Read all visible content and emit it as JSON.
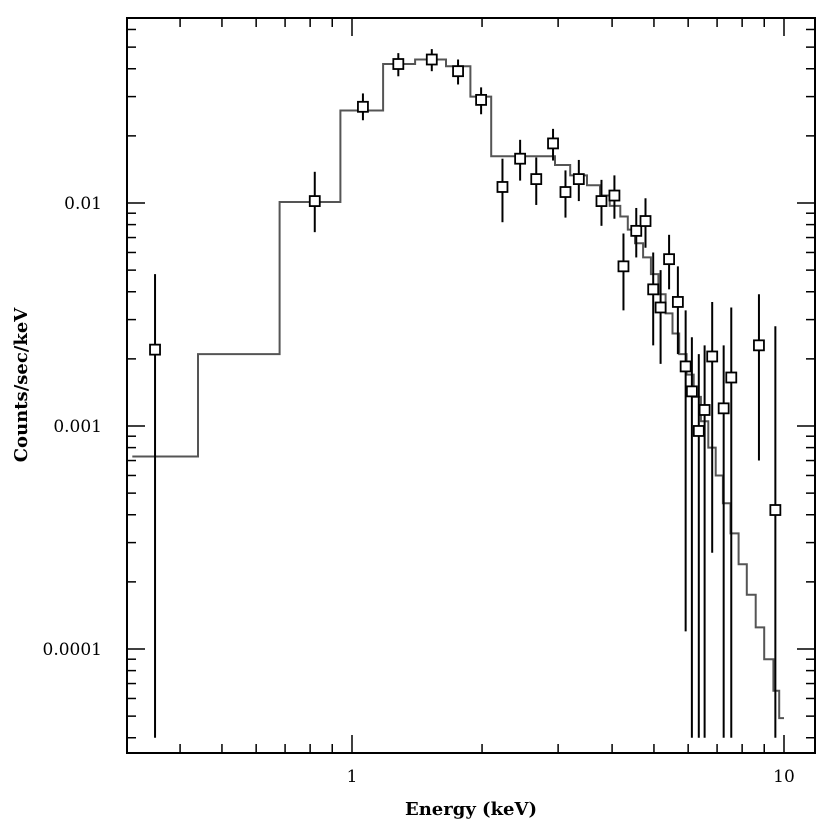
{
  "chart_data": {
    "type": "scatter",
    "title": "",
    "xlabel": "Energy (keV)",
    "ylabel": "Counts/sec/keV",
    "xscale": "log",
    "yscale": "log",
    "xlim": [
      0.31,
      11.5
    ],
    "ylim": [
      4e-05,
      0.1
    ],
    "grid": false,
    "x_tick_labels": [
      {
        "value": 1,
        "label": "1"
      },
      {
        "value": 10,
        "label": "10"
      }
    ],
    "y_tick_labels": [
      {
        "value": 0.0001,
        "label": "0.0001"
      },
      {
        "value": 0.001,
        "label": "0.001"
      },
      {
        "value": 0.01,
        "label": "0.01"
      }
    ],
    "series": [
      {
        "kind": "data",
        "marker": "open-square",
        "points": [
          {
            "x": 0.35,
            "y": 0.0022,
            "ylo": 4e-05,
            "yhi": 0.0048
          },
          {
            "x": 0.82,
            "y": 0.0102,
            "ylo": 0.0074,
            "yhi": 0.0138
          },
          {
            "x": 1.06,
            "y": 0.027,
            "ylo": 0.0235,
            "yhi": 0.031
          },
          {
            "x": 1.28,
            "y": 0.042,
            "ylo": 0.037,
            "yhi": 0.047
          },
          {
            "x": 1.53,
            "y": 0.044,
            "ylo": 0.039,
            "yhi": 0.049
          },
          {
            "x": 1.76,
            "y": 0.039,
            "ylo": 0.034,
            "yhi": 0.044
          },
          {
            "x": 1.99,
            "y": 0.029,
            "ylo": 0.025,
            "yhi": 0.033
          },
          {
            "x": 2.23,
            "y": 0.0118,
            "ylo": 0.0082,
            "yhi": 0.0158
          },
          {
            "x": 2.45,
            "y": 0.0158,
            "ylo": 0.0126,
            "yhi": 0.0192
          },
          {
            "x": 2.67,
            "y": 0.0128,
            "ylo": 0.0098,
            "yhi": 0.016
          },
          {
            "x": 2.92,
            "y": 0.0185,
            "ylo": 0.0155,
            "yhi": 0.0215
          },
          {
            "x": 3.12,
            "y": 0.0112,
            "ylo": 0.0086,
            "yhi": 0.014
          },
          {
            "x": 3.35,
            "y": 0.0128,
            "ylo": 0.0102,
            "yhi": 0.0156
          },
          {
            "x": 3.78,
            "y": 0.0102,
            "ylo": 0.0079,
            "yhi": 0.0127
          },
          {
            "x": 4.05,
            "y": 0.0108,
            "ylo": 0.0085,
            "yhi": 0.0133
          },
          {
            "x": 4.25,
            "y": 0.0052,
            "ylo": 0.0033,
            "yhi": 0.0073
          },
          {
            "x": 4.55,
            "y": 0.0075,
            "ylo": 0.0057,
            "yhi": 0.0095
          },
          {
            "x": 4.78,
            "y": 0.0083,
            "ylo": 0.0063,
            "yhi": 0.0105
          },
          {
            "x": 4.98,
            "y": 0.0041,
            "ylo": 0.0023,
            "yhi": 0.006
          },
          {
            "x": 5.18,
            "y": 0.0034,
            "ylo": 0.0019,
            "yhi": 0.005
          },
          {
            "x": 5.42,
            "y": 0.0056,
            "ylo": 0.0041,
            "yhi": 0.0072
          },
          {
            "x": 5.68,
            "y": 0.0036,
            "ylo": 0.0021,
            "yhi": 0.0052
          },
          {
            "x": 5.92,
            "y": 0.00185,
            "ylo": 0.00012,
            "yhi": 0.0033
          },
          {
            "x": 6.12,
            "y": 0.00143,
            "ylo": 4e-05,
            "yhi": 0.0025
          },
          {
            "x": 6.35,
            "y": 0.00095,
            "ylo": 4e-05,
            "yhi": 0.0021
          },
          {
            "x": 6.55,
            "y": 0.00118,
            "ylo": 4e-05,
            "yhi": 0.0023
          },
          {
            "x": 6.82,
            "y": 0.00205,
            "ylo": 0.00027,
            "yhi": 0.0036
          },
          {
            "x": 7.25,
            "y": 0.0012,
            "ylo": 4e-05,
            "yhi": 0.0023
          },
          {
            "x": 7.55,
            "y": 0.00165,
            "ylo": 4e-05,
            "yhi": 0.0034
          },
          {
            "x": 8.75,
            "y": 0.0023,
            "ylo": 0.0007,
            "yhi": 0.0039
          },
          {
            "x": 9.55,
            "y": 0.00042,
            "ylo": 4e-05,
            "yhi": 0.0028
          }
        ]
      },
      {
        "kind": "model",
        "step_x": [
          0.31,
          0.44,
          0.44,
          0.68,
          0.68,
          0.94,
          0.94,
          1.18,
          1.18,
          1.4,
          1.4,
          1.65,
          1.65,
          1.88,
          1.88,
          2.1,
          2.1,
          2.95,
          2.95,
          3.2,
          3.2,
          3.5,
          3.5,
          3.75,
          3.75,
          3.95,
          3.95,
          4.18,
          4.18,
          4.35,
          4.35,
          4.52,
          4.52,
          4.72,
          4.72,
          4.92,
          4.92,
          5.12,
          5.12,
          5.32,
          5.32,
          5.52,
          5.52,
          5.72,
          5.72,
          5.95,
          5.95,
          6.18,
          6.18,
          6.42,
          6.42,
          6.68,
          6.68,
          6.95,
          6.95,
          7.22,
          7.22,
          7.52,
          7.52,
          7.85,
          7.85,
          8.2,
          8.2,
          8.6,
          8.6,
          9.0,
          9.0,
          9.45,
          9.45,
          9.75,
          9.75,
          10.0
        ],
        "step_y": [
          0.00073,
          0.00073,
          0.0021,
          0.0021,
          0.0101,
          0.0101,
          0.026,
          0.026,
          0.042,
          0.042,
          0.044,
          0.044,
          0.041,
          0.041,
          0.03,
          0.03,
          0.0162,
          0.0162,
          0.0148,
          0.0148,
          0.0133,
          0.0133,
          0.012,
          0.012,
          0.0108,
          0.0108,
          0.0097,
          0.0097,
          0.0087,
          0.0087,
          0.0076,
          0.0076,
          0.0066,
          0.0066,
          0.0057,
          0.0057,
          0.0048,
          0.0048,
          0.0039,
          0.0039,
          0.0032,
          0.0032,
          0.0026,
          0.0026,
          0.0021,
          0.0021,
          0.0017,
          0.0017,
          0.00135,
          0.00135,
          0.00105,
          0.00105,
          0.0008,
          0.0008,
          0.0006,
          0.0006,
          0.00045,
          0.00045,
          0.00033,
          0.00033,
          0.00024,
          0.00024,
          0.000175,
          0.000175,
          0.000125,
          0.000125,
          9e-05,
          9e-05,
          6.5e-05,
          6.5e-05,
          4.9e-05,
          4.9e-05
        ]
      }
    ]
  }
}
